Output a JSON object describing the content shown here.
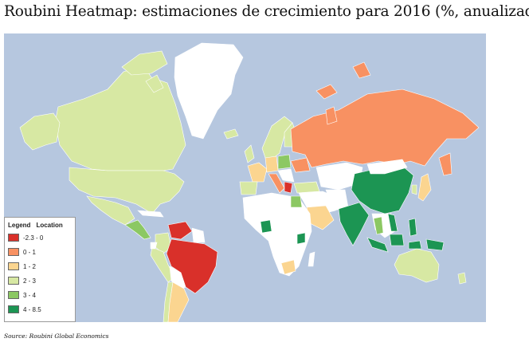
{
  "title": "Roubini Heatmap: estimaciones de crecimiento para 2016 (%, anualizado)",
  "source": "Source: Roubini Global Economics",
  "legend": {
    "header_legend": "Legend",
    "header_location": "Location",
    "items": [
      {
        "label": "-2.3 - 0",
        "color": "#d9302a"
      },
      {
        "label": "0 - 1",
        "color": "#f89162"
      },
      {
        "label": "1 - 2",
        "color": "#fbd590"
      },
      {
        "label": "2 - 3",
        "color": "#d7e8a3"
      },
      {
        "label": "3 - 4",
        "color": "#8cc863"
      },
      {
        "label": "4 - 8.5",
        "color": "#1c9553"
      }
    ]
  },
  "colors": {
    "ocean": "#b6c7df",
    "no_data": "#ffffff"
  },
  "regions": [
    {
      "name": "United States",
      "range": "2 - 3"
    },
    {
      "name": "Canada",
      "range": "2 - 3"
    },
    {
      "name": "Alaska",
      "range": "2 - 3"
    },
    {
      "name": "Mexico",
      "range": "2 - 3"
    },
    {
      "name": "Central America",
      "range": "3 - 4"
    },
    {
      "name": "Venezuela",
      "range": "-2.3 - 0"
    },
    {
      "name": "Brazil",
      "range": "-2.3 - 0"
    },
    {
      "name": "Peru",
      "range": "2 - 3"
    },
    {
      "name": "Colombia",
      "range": "2 - 3"
    },
    {
      "name": "Argentina",
      "range": "1 - 2"
    },
    {
      "name": "Chile",
      "range": "2 - 3"
    },
    {
      "name": "Russia",
      "range": "0 - 1"
    },
    {
      "name": "China",
      "range": "4 - 8.5"
    },
    {
      "name": "India",
      "range": "4 - 8.5"
    },
    {
      "name": "Indonesia",
      "range": "4 - 8.5"
    },
    {
      "name": "Philippines",
      "range": "4 - 8.5"
    },
    {
      "name": "Thailand",
      "range": "3 - 4"
    },
    {
      "name": "Vietnam",
      "range": "4 - 8.5"
    },
    {
      "name": "Japan",
      "range": "1 - 2"
    },
    {
      "name": "South Korea",
      "range": "2 - 3"
    },
    {
      "name": "Australia",
      "range": "2 - 3"
    },
    {
      "name": "New Zealand",
      "range": "2 - 3"
    },
    {
      "name": "Nigeria",
      "range": "4 - 8.5"
    },
    {
      "name": "Kenya",
      "range": "4 - 8.5"
    },
    {
      "name": "South Africa",
      "range": "1 - 2"
    },
    {
      "name": "Egypt",
      "range": "3 - 4"
    },
    {
      "name": "Saudi Arabia",
      "range": "1 - 2"
    },
    {
      "name": "Turkey",
      "range": "2 - 3"
    },
    {
      "name": "Ukraine",
      "range": "0 - 1"
    },
    {
      "name": "Italy",
      "range": "0 - 1"
    },
    {
      "name": "Greece",
      "range": "-2.3 - 0"
    },
    {
      "name": "Spain",
      "range": "2 - 3"
    },
    {
      "name": "France",
      "range": "1 - 2"
    },
    {
      "name": "Germany",
      "range": "1 - 2"
    },
    {
      "name": "United Kingdom",
      "range": "2 - 3"
    },
    {
      "name": "Scandinavia",
      "range": "2 - 3"
    },
    {
      "name": "Poland",
      "range": "3 - 4"
    },
    {
      "name": "Iceland",
      "range": "2 - 3"
    }
  ]
}
